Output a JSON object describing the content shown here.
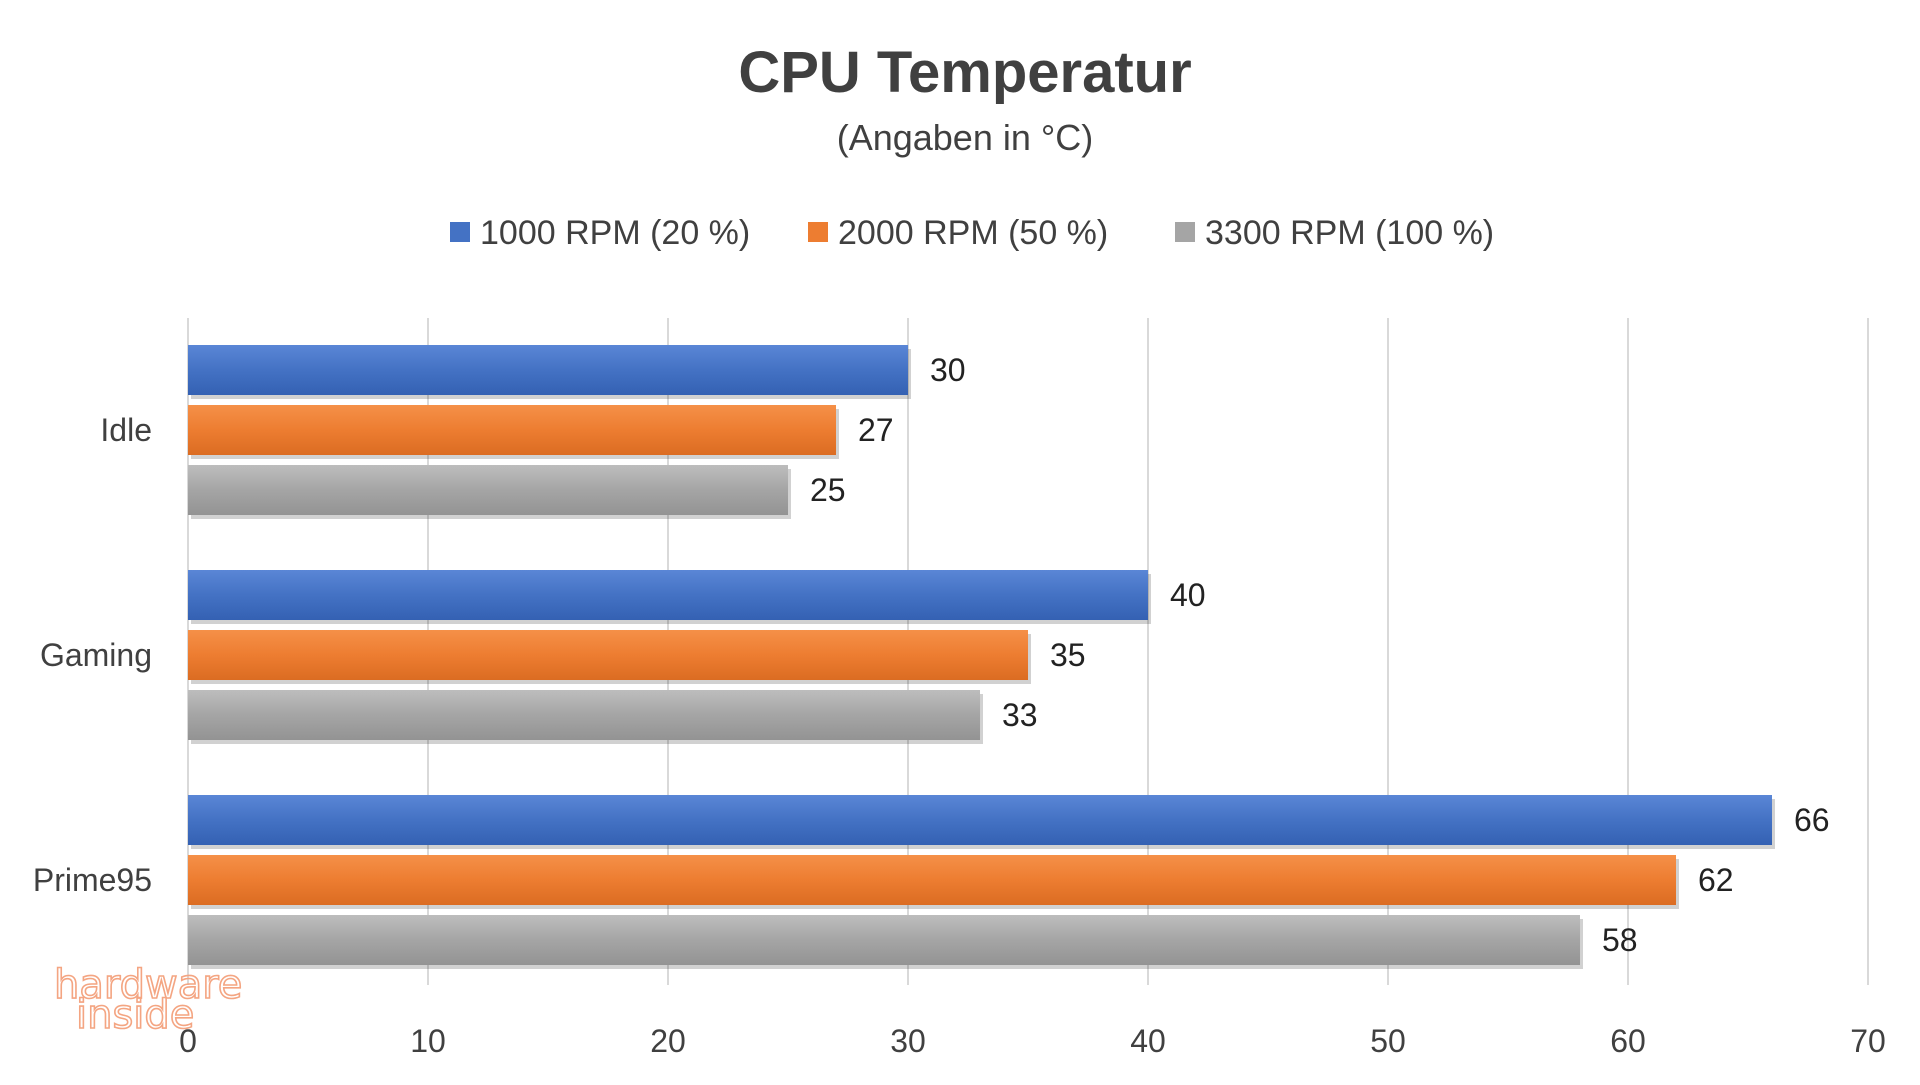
{
  "chart_data": {
    "type": "bar",
    "orientation": "horizontal",
    "title": "CPU Temperatur",
    "subtitle": "(Angaben in °C)",
    "categories": [
      "Idle",
      "Gaming",
      "Prime95"
    ],
    "series": [
      {
        "name": "1000 RPM (20 %)",
        "color": "#4472C4",
        "values": [
          30,
          40,
          66
        ]
      },
      {
        "name": "2000 RPM (50 %)",
        "color": "#ED7D31",
        "values": [
          27,
          35,
          62
        ]
      },
      {
        "name": "3300 RPM (100 %)",
        "color": "#A5A5A5",
        "values": [
          25,
          33,
          58
        ]
      }
    ],
    "xlim": [
      0,
      70
    ],
    "xticks": [
      0,
      10,
      20,
      30,
      40,
      50,
      60,
      70
    ],
    "grid": true,
    "legend_position": "top-center",
    "xlabel": "",
    "ylabel": ""
  },
  "watermark": {
    "line1": "hardware",
    "line2": "inside",
    "color1": "#F4A582",
    "color2": "#F4A582"
  }
}
